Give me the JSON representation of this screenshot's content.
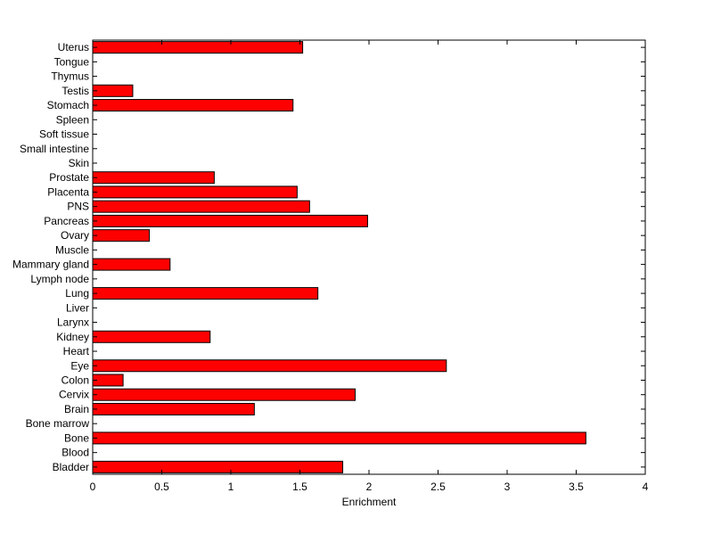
{
  "chart_data": {
    "type": "bar",
    "orientation": "horizontal",
    "categories": [
      "Bladder",
      "Blood",
      "Bone",
      "Bone marrow",
      "Brain",
      "Cervix",
      "Colon",
      "Eye",
      "Heart",
      "Kidney",
      "Larynx",
      "Liver",
      "Lung",
      "Lymph node",
      "Mammary gland",
      "Muscle",
      "Ovary",
      "Pancreas",
      "PNS",
      "Placenta",
      "Prostate",
      "Skin",
      "Small intestine",
      "Soft tissue",
      "Spleen",
      "Stomach",
      "Testis",
      "Thymus",
      "Tongue",
      "Uterus"
    ],
    "values": [
      1.81,
      0,
      3.57,
      0,
      1.17,
      1.9,
      0.22,
      2.56,
      0,
      0.85,
      0,
      0,
      1.63,
      0,
      0.56,
      0,
      0.41,
      1.99,
      1.57,
      1.48,
      0.88,
      0,
      0,
      0,
      0,
      1.45,
      0.29,
      0,
      0,
      1.52
    ],
    "xlim": [
      0,
      4
    ],
    "xticks": [
      "0",
      "0.5",
      "1",
      "1.5",
      "2",
      "2.5",
      "3",
      "3.5",
      "4"
    ],
    "xlabel": "Enrichment",
    "ylabel": "",
    "title": "",
    "grid": false,
    "legend": "none",
    "bar_color": "#ff0000",
    "edge_color": "#000000"
  }
}
